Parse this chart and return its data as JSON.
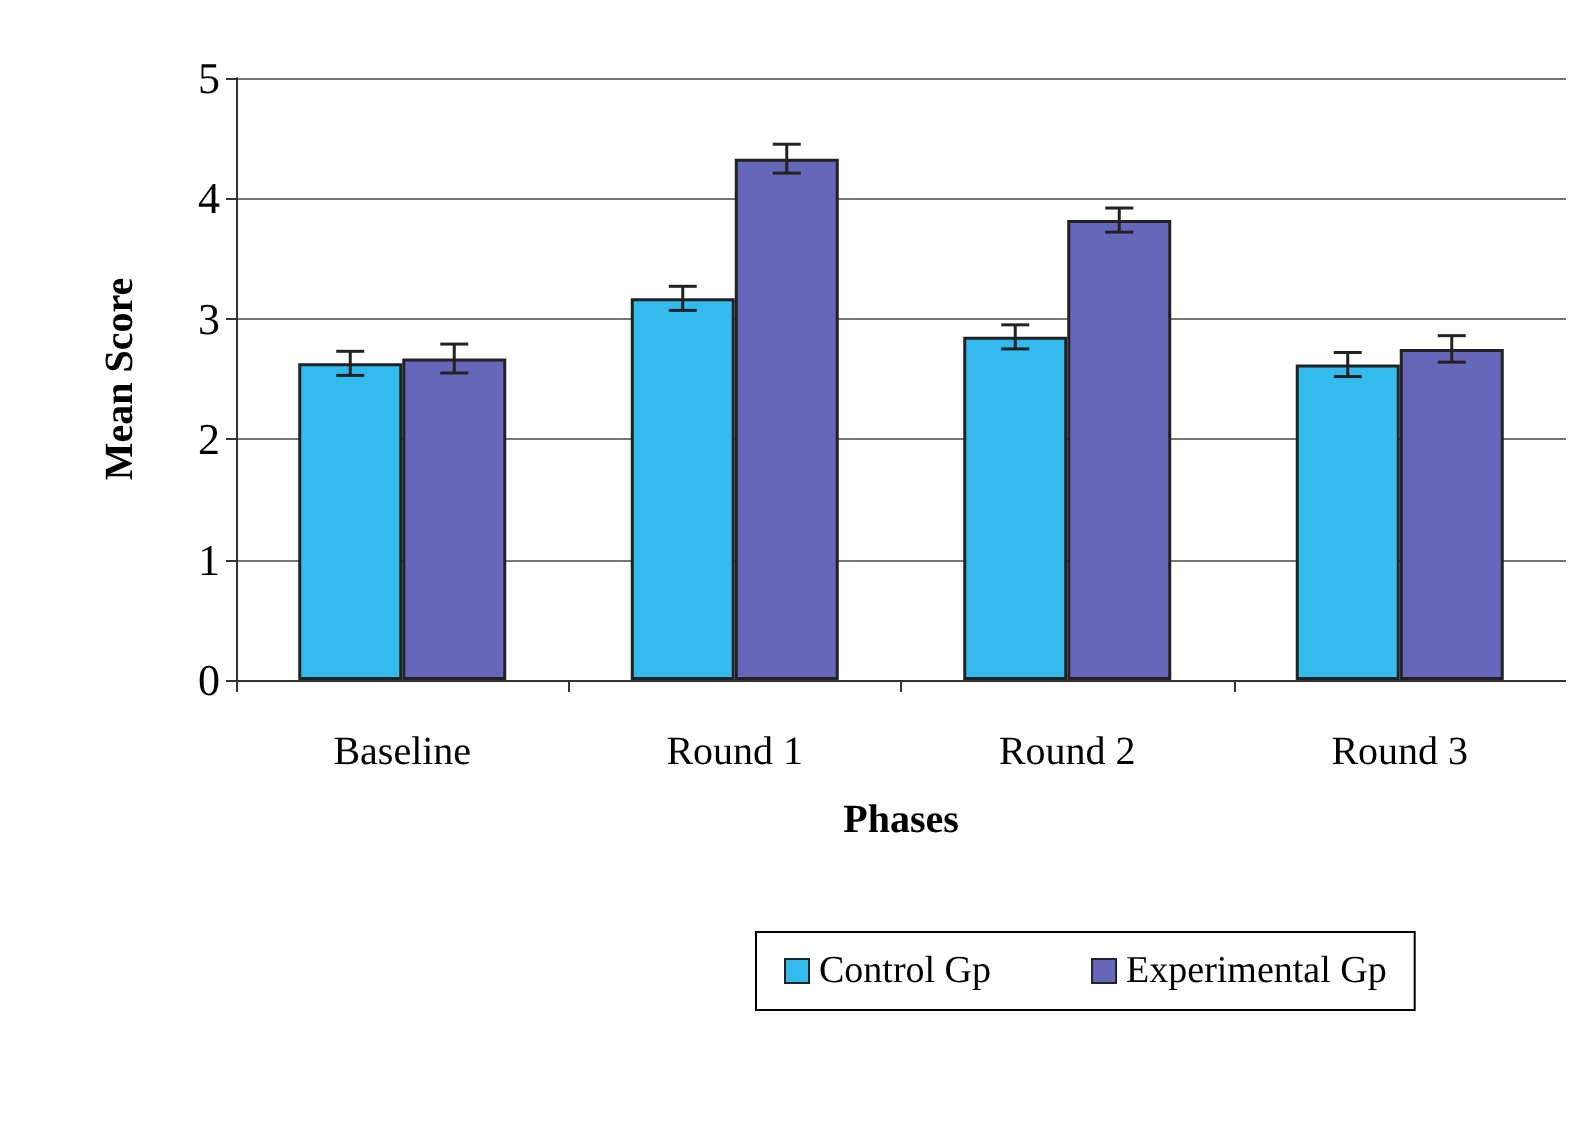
{
  "chart_data": {
    "type": "bar",
    "xlabel": "Phases",
    "ylabel": "Mean Score",
    "categories": [
      "Baseline",
      "Round 1",
      "Round 2",
      "Round 3"
    ],
    "series": [
      {
        "name": "Control Gp",
        "color": "#33bbee",
        "values": [
          2.63,
          3.17,
          2.85,
          2.62
        ],
        "errors": [
          0.1,
          0.1,
          0.1,
          0.1
        ]
      },
      {
        "name": "Experimental Gp",
        "color": "#6666bb",
        "values": [
          2.67,
          4.33,
          3.82,
          2.75
        ],
        "errors": [
          0.12,
          0.12,
          0.1,
          0.11
        ]
      }
    ],
    "ylim": [
      0,
      5
    ],
    "yticks": [
      0,
      1,
      2,
      3,
      4,
      5
    ],
    "grid": "y",
    "legend": "bottom"
  }
}
